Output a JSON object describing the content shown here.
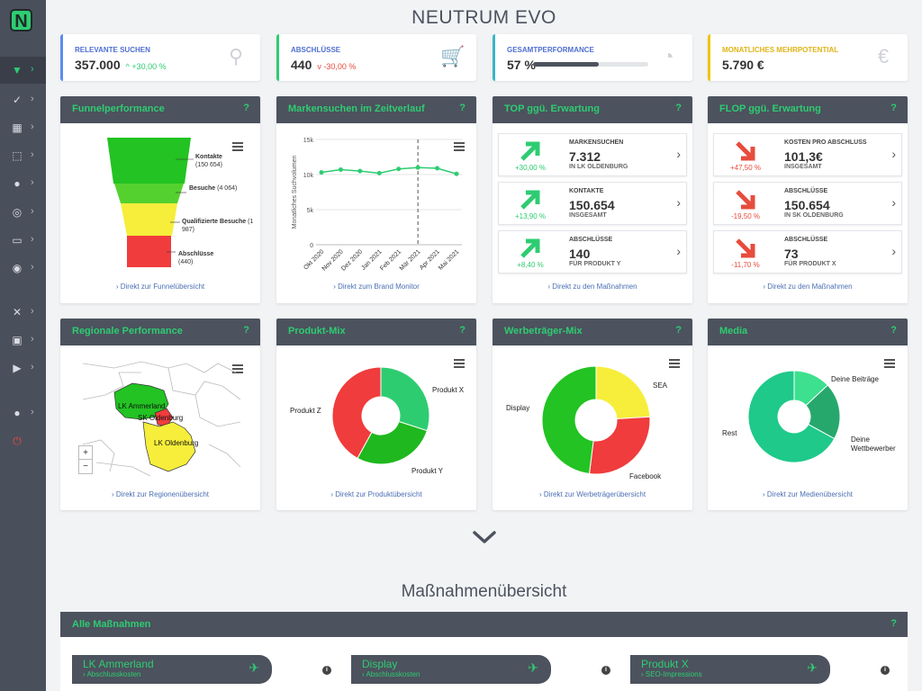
{
  "app": {
    "logo_letter": "N",
    "title": "NEUTRUM EVO"
  },
  "sidebar": [
    {
      "icon": "filter-icon",
      "glyph": "▼",
      "active": true
    },
    {
      "icon": "check-icon",
      "glyph": "✓"
    },
    {
      "icon": "calculator-icon",
      "glyph": "▦"
    },
    {
      "icon": "chart-flow-icon",
      "glyph": "⬚"
    },
    {
      "icon": "lightbulb-icon",
      "glyph": "●"
    },
    {
      "icon": "target-icon",
      "glyph": "◎"
    },
    {
      "icon": "card-icon",
      "glyph": "▭"
    },
    {
      "icon": "eye-icon",
      "glyph": "◉"
    },
    {
      "icon": "tools-icon",
      "glyph": "✕"
    },
    {
      "icon": "lock-icon",
      "glyph": "▣"
    },
    {
      "icon": "play-icon",
      "glyph": "▶"
    },
    {
      "icon": "user-icon",
      "glyph": "●"
    },
    {
      "icon": "power-icon",
      "glyph": "⏻"
    }
  ],
  "kpis": [
    {
      "label": "RELEVANTE SUCHEN",
      "value": "357.000",
      "delta": "^ +30,00 %",
      "delta_color": "#2ecc71",
      "accent": "#5b8cf0",
      "label_color": "#4f6fd0",
      "icon": "search-icon",
      "glyph": "⚲"
    },
    {
      "label": "ABSCHLÜSSE",
      "value": "440",
      "delta": "v -30,00 %",
      "delta_color": "#e74c3c",
      "accent": "#2ecc71",
      "label_color": "#4f6fd0",
      "icon": "cart-icon",
      "glyph": "🛒"
    },
    {
      "label": "GESAMTPERFORMANCE",
      "value": "57 %",
      "progress": 0.57,
      "accent": "#3cb5c8",
      "label_color": "#4f6fd0",
      "icon": "gauge-icon",
      "glyph": "◔"
    },
    {
      "label": "MONATLICHES MEHRPOTENTIAL",
      "value": "5.790 €",
      "accent": "#f1c40f",
      "label_color": "#e0b417",
      "icon": "euro-icon",
      "glyph": "€"
    }
  ],
  "cards": {
    "funnel": {
      "title": "Funnelperformance",
      "help": "?",
      "link": "› Direkt zur Funnelübersicht",
      "labels": [
        {
          "bold": "Kontakte",
          "text": "(150 654)"
        },
        {
          "bold": "Besuche",
          "text": "(4 064)"
        },
        {
          "bold": "Qualifizierte Besuche",
          "text": "(1 987)"
        },
        {
          "bold": "Abschlüsse",
          "text": "(440)"
        }
      ]
    },
    "trend": {
      "title": "Markensuchen im Zeitverlauf",
      "help": "?",
      "link": "› Direkt zum Brand Monitor"
    },
    "top": {
      "title": "TOP ggü. Erwartung",
      "help": "?",
      "link": "› Direkt zu den Maßnahmen",
      "items": [
        {
          "caption": "MARKENSUCHEN",
          "value": "7.312",
          "sub": "IN LK OLDENBURG",
          "pct": "+30,00 %"
        },
        {
          "caption": "KONTAKTE",
          "value": "150.654",
          "sub": "INSGESAMT",
          "pct": "+13,90 %"
        },
        {
          "caption": "ABSCHLÜSSE",
          "value": "140",
          "sub": "FÜR PRODUKT Y",
          "pct": "+8,40 %"
        }
      ]
    },
    "flop": {
      "title": "FLOP ggü. Erwartung",
      "help": "?",
      "link": "› Direkt zu den Maßnahmen",
      "items": [
        {
          "caption": "KOSTEN PRO ABSCHLUSS",
          "value": "101,3€",
          "sub": "INSGESAMT",
          "pct": "+47,50 %"
        },
        {
          "caption": "ABSCHLÜSSE",
          "value": "150.654",
          "sub": "IN SK OLDENBURG",
          "pct": "-19,50 %"
        },
        {
          "caption": "ABSCHLÜSSE",
          "value": "73",
          "sub": "FÜR PRODUKT X",
          "pct": "-11,70 %"
        }
      ]
    },
    "region": {
      "title": "Regionale Performance",
      "help": "?",
      "link": "› Direkt zur Regionenübersicht",
      "regions": [
        "LK Ammerland",
        "SK Oldenburg",
        "LK Oldenburg"
      ],
      "zoom_in": "+",
      "zoom_out": "−"
    },
    "produkt": {
      "title": "Produkt-Mix",
      "help": "?",
      "link": "› Direkt zur Produktübersicht"
    },
    "werbe": {
      "title": "Werbeträger-Mix",
      "help": "?",
      "link": "› Direkt zur Werbeträgerübersicht"
    },
    "media": {
      "title": "Media",
      "help": "?",
      "link": "› Direkt zur Medienübersicht"
    }
  },
  "chart_data": [
    {
      "type": "line",
      "title": "Markensuchen im Zeitverlauf",
      "ylabel": "Monatliches Suchvolumen",
      "ylim": [
        0,
        15000
      ],
      "yticks": [
        "0",
        "5k",
        "10k",
        "15k"
      ],
      "categories": [
        "Okt 2020",
        "Nov 2020",
        "Dez 2020",
        "Jan 2021",
        "Feb 2021",
        "Mär 2021",
        "Apr 2021",
        "Mai 2021"
      ],
      "series": [
        {
          "values": [
            10300,
            10700,
            10500,
            10200,
            10800,
            11000,
            10900,
            10100
          ]
        }
      ],
      "color": "#2ecc71",
      "marker_line": "Mär 2021"
    },
    {
      "type": "pie",
      "title": "Produkt-Mix",
      "donut": true,
      "labels": [
        "Produkt X",
        "Produkt Y",
        "Produkt Z"
      ],
      "values": [
        30,
        28,
        42
      ],
      "colors": [
        "#2ecc71",
        "#1fb81f",
        "#f03c3c"
      ]
    },
    {
      "type": "pie",
      "title": "Werbeträger-Mix",
      "donut": true,
      "labels": [
        "SEA",
        "Facebook",
        "Display"
      ],
      "values": [
        24,
        28,
        48
      ],
      "colors": [
        "#f6ee3a",
        "#f03c3c",
        "#22c322"
      ]
    },
    {
      "type": "pie",
      "title": "Media",
      "donut": true,
      "labels": [
        "Deine Beiträge",
        "Deine Wettbewerber",
        "Rest"
      ],
      "values": [
        13,
        20,
        67
      ],
      "colors": [
        "#3de08f",
        "#26a86c",
        "#1ec98a"
      ]
    }
  ],
  "section": {
    "title": "Maßnahmenübersicht"
  },
  "alle": {
    "title": "Alle Maßnahmen",
    "help": "?",
    "items": [
      {
        "title": "LK Ammerland",
        "sub": "› Abschlusskosten"
      },
      {
        "title": "Display",
        "sub": "› Abschlusskosten"
      },
      {
        "title": "Produkt X",
        "sub": "› SEO-Impressions"
      }
    ],
    "info": "i"
  }
}
